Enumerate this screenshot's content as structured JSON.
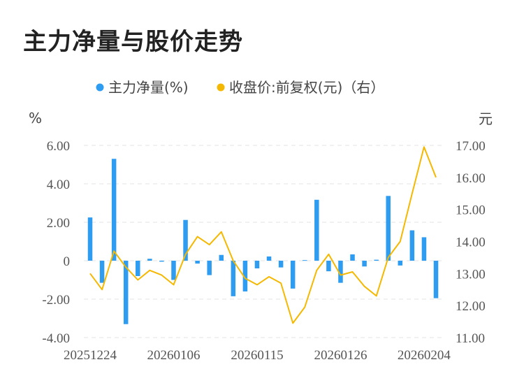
{
  "title": "主力净量与股价走势",
  "colors": {
    "bar": "#2e9cf0",
    "line": "#f5b800",
    "grid": "#e3e3e3",
    "text": "#555555"
  },
  "chart_data": {
    "type": "bar+line",
    "legend": [
      {
        "name": "主力净量(%)",
        "color": "#2e9cf0",
        "marker": "circle"
      },
      {
        "name": "收盘价:前复权(元)（右）",
        "color": "#f5b800",
        "marker": "circle"
      }
    ],
    "left_unit": "%",
    "right_unit": "元",
    "left_ylim": [
      -4,
      6
    ],
    "right_ylim": [
      11,
      17
    ],
    "left_ticks": [
      "6.00",
      "4.00",
      "2.00",
      "0",
      "-2.00",
      "-4.00"
    ],
    "left_tick_values": [
      6,
      4,
      2,
      0,
      -2,
      -4
    ],
    "right_ticks": [
      "17.00",
      "16.00",
      "15.00",
      "14.00",
      "13.00",
      "12.00",
      "11.00"
    ],
    "right_tick_values": [
      17,
      16,
      15,
      14,
      13,
      12,
      11
    ],
    "x_tick_labels": [
      "20251224",
      "20260106",
      "20260115",
      "20260126",
      "20260204"
    ],
    "x_tick_index": [
      0,
      7,
      14,
      21,
      28
    ],
    "series": [
      {
        "name": "主力净量(%)",
        "type": "bar",
        "values": [
          2.25,
          -1.15,
          5.3,
          -3.3,
          -0.8,
          0.1,
          -0.05,
          -1.0,
          2.12,
          -0.15,
          -0.75,
          0.3,
          -1.85,
          -1.6,
          -0.4,
          0.22,
          -0.35,
          -1.45,
          0.03,
          3.17,
          -0.55,
          -1.15,
          0.33,
          -0.3,
          0.05,
          3.37,
          -0.25,
          1.58,
          1.22,
          -1.95
        ]
      },
      {
        "name": "收盘价:前复权(元)（右）",
        "type": "line",
        "axis": "right",
        "values": [
          13.0,
          12.5,
          13.7,
          13.2,
          12.8,
          13.1,
          12.95,
          12.65,
          13.6,
          14.15,
          13.9,
          14.3,
          13.4,
          12.85,
          12.65,
          12.9,
          12.7,
          11.45,
          11.95,
          13.1,
          13.6,
          12.95,
          13.05,
          12.6,
          12.3,
          13.5,
          14.0,
          15.5,
          16.95,
          16.0
        ]
      }
    ]
  }
}
